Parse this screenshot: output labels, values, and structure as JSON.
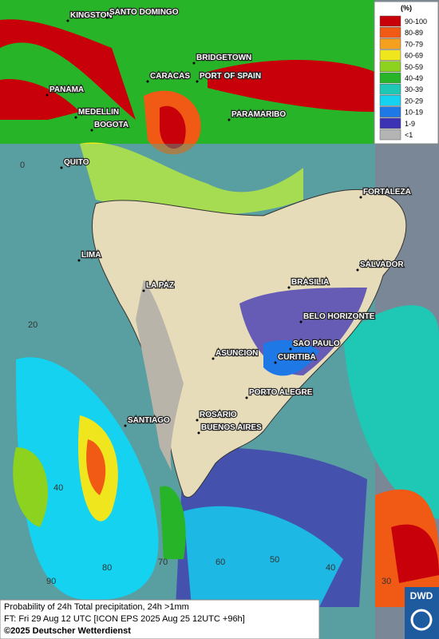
{
  "legend": {
    "title": "(%)",
    "items": [
      {
        "label": "90-100",
        "color": "#c8000a"
      },
      {
        "label": "80-89",
        "color": "#f05a14"
      },
      {
        "label": "70-79",
        "color": "#f5a01e"
      },
      {
        "label": "60-69",
        "color": "#f0e61e"
      },
      {
        "label": "50-59",
        "color": "#8cd21e"
      },
      {
        "label": "40-49",
        "color": "#28b428"
      },
      {
        "label": "30-39",
        "color": "#1ec8b4"
      },
      {
        "label": "20-29",
        "color": "#14d2f0"
      },
      {
        "label": "10-19",
        "color": "#1e78e6"
      },
      {
        "label": "1-9",
        "color": "#3c32b4"
      },
      {
        "label": "<1",
        "color": "#b4b4b4"
      }
    ]
  },
  "cities": [
    "KINGSTON",
    "SANTO DOMINGO",
    "BRIDGETOWN",
    "CARACAS",
    "PORT OF SPAIN",
    "PANAMA",
    "MEDELLIN",
    "BOGOTA",
    "PARAMARIBO",
    "QUITO",
    "FORTALEZA",
    "LIMA",
    "SALVADOR",
    "LA PAZ",
    "BRASILIA",
    "BELO HORIZONTE",
    "SAO PAULO",
    "ASUNCION",
    "CURITIBA",
    "PORTO ALEGRE",
    "ROSARIO",
    "SANTIAGO",
    "BUENOS AIRES"
  ],
  "grid_labels": [
    0,
    20,
    40,
    90,
    80,
    70,
    60,
    50,
    40,
    30
  ],
  "caption": {
    "line1": "Probability of 24h Total precipitation, 24h >1mm",
    "line2": "FT: Fri 29 Aug 12 UTC [ICON EPS 2025 Aug 25 12UTC +96h]",
    "copyright": "©2025 Deutscher Wetterdienst"
  },
  "logo": "DWD"
}
